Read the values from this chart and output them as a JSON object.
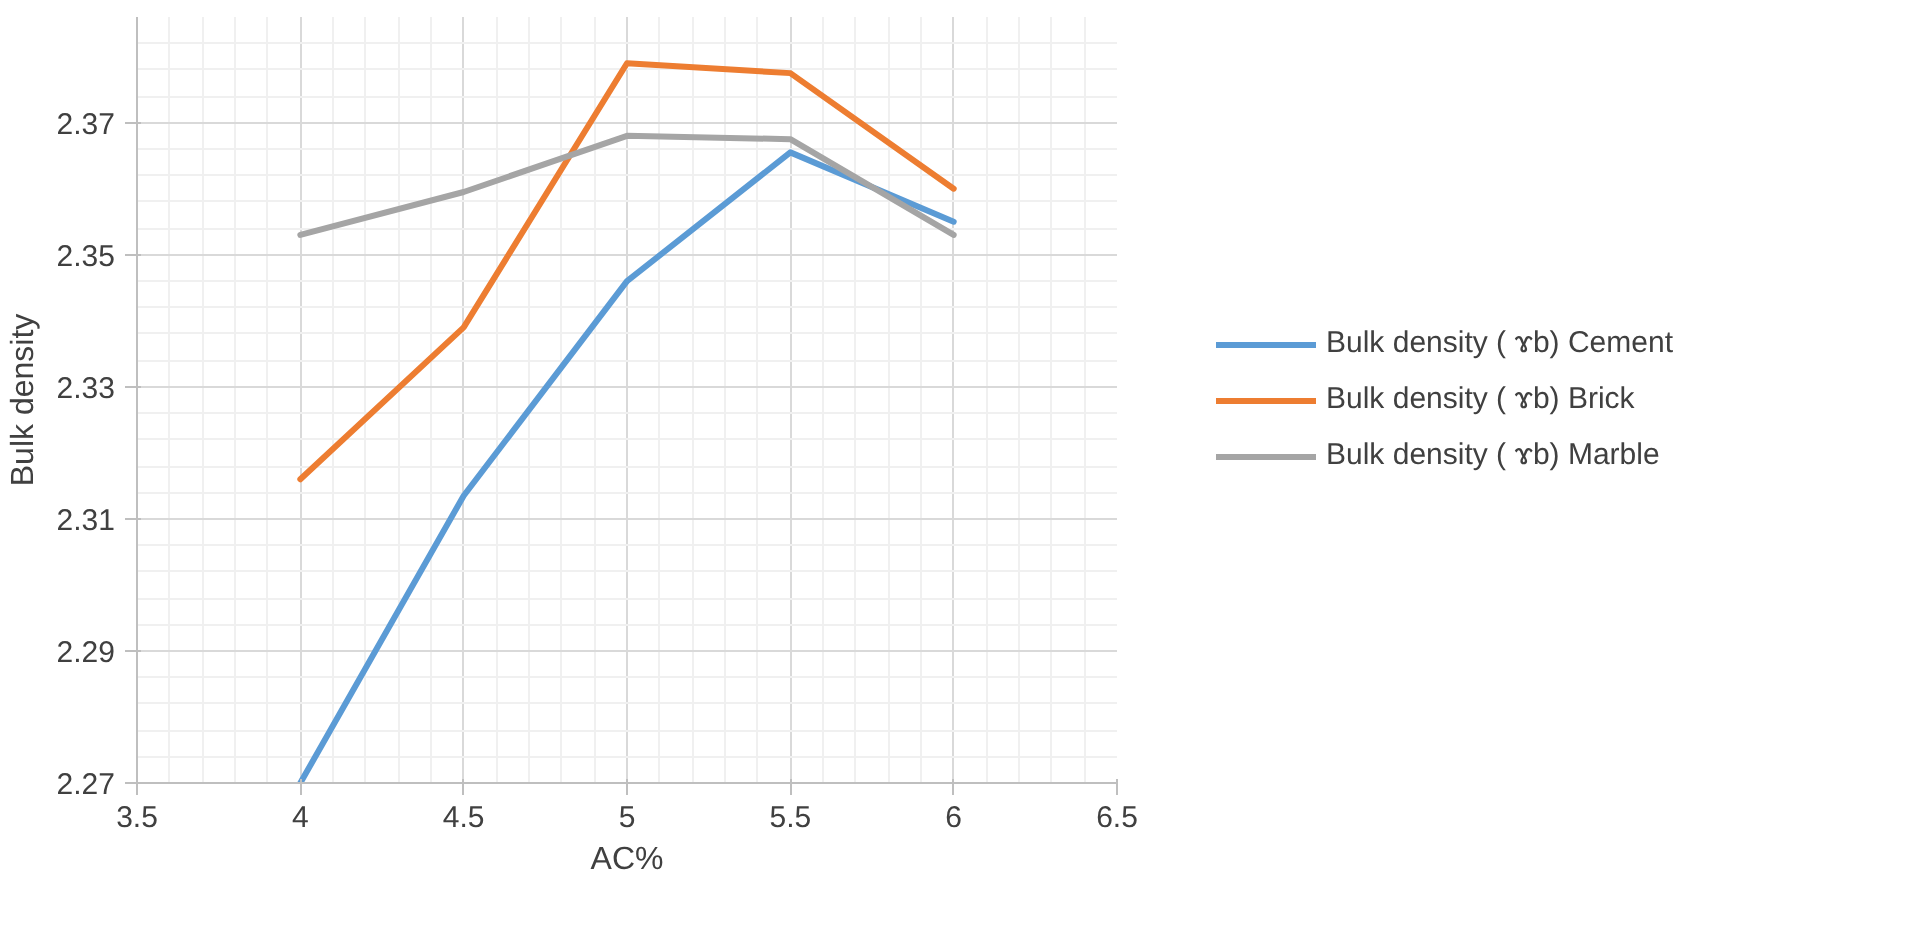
{
  "chart_data": {
    "type": "line",
    "xlabel": "AC%",
    "ylabel": "Bulk density",
    "x": [
      4,
      4.5,
      5,
      5.5,
      6
    ],
    "series": [
      {
        "name": "Bulk density ( ɤb) Cement",
        "color": "#5b9bd5",
        "values": [
          2.27,
          2.3135,
          2.346,
          2.3655,
          2.355
        ]
      },
      {
        "name": "Bulk density ( ɤb) Brick",
        "color": "#ed7d31",
        "values": [
          2.316,
          2.339,
          2.379,
          2.3775,
          2.36
        ]
      },
      {
        "name": "Bulk density ( ɤb) Marble",
        "color": "#a5a5a5",
        "values": [
          2.353,
          2.3595,
          2.368,
          2.3675,
          2.353
        ]
      }
    ],
    "xlim": [
      3.5,
      6.5
    ],
    "xticks": [
      3.5,
      4,
      4.5,
      5,
      5.5,
      6,
      6.5
    ],
    "ylim": [
      2.27,
      2.386
    ],
    "yticks": [
      2.27,
      2.29,
      2.31,
      2.33,
      2.35,
      2.37
    ],
    "grid": true,
    "legend": "right",
    "marker": "none",
    "line_style": "solid"
  }
}
